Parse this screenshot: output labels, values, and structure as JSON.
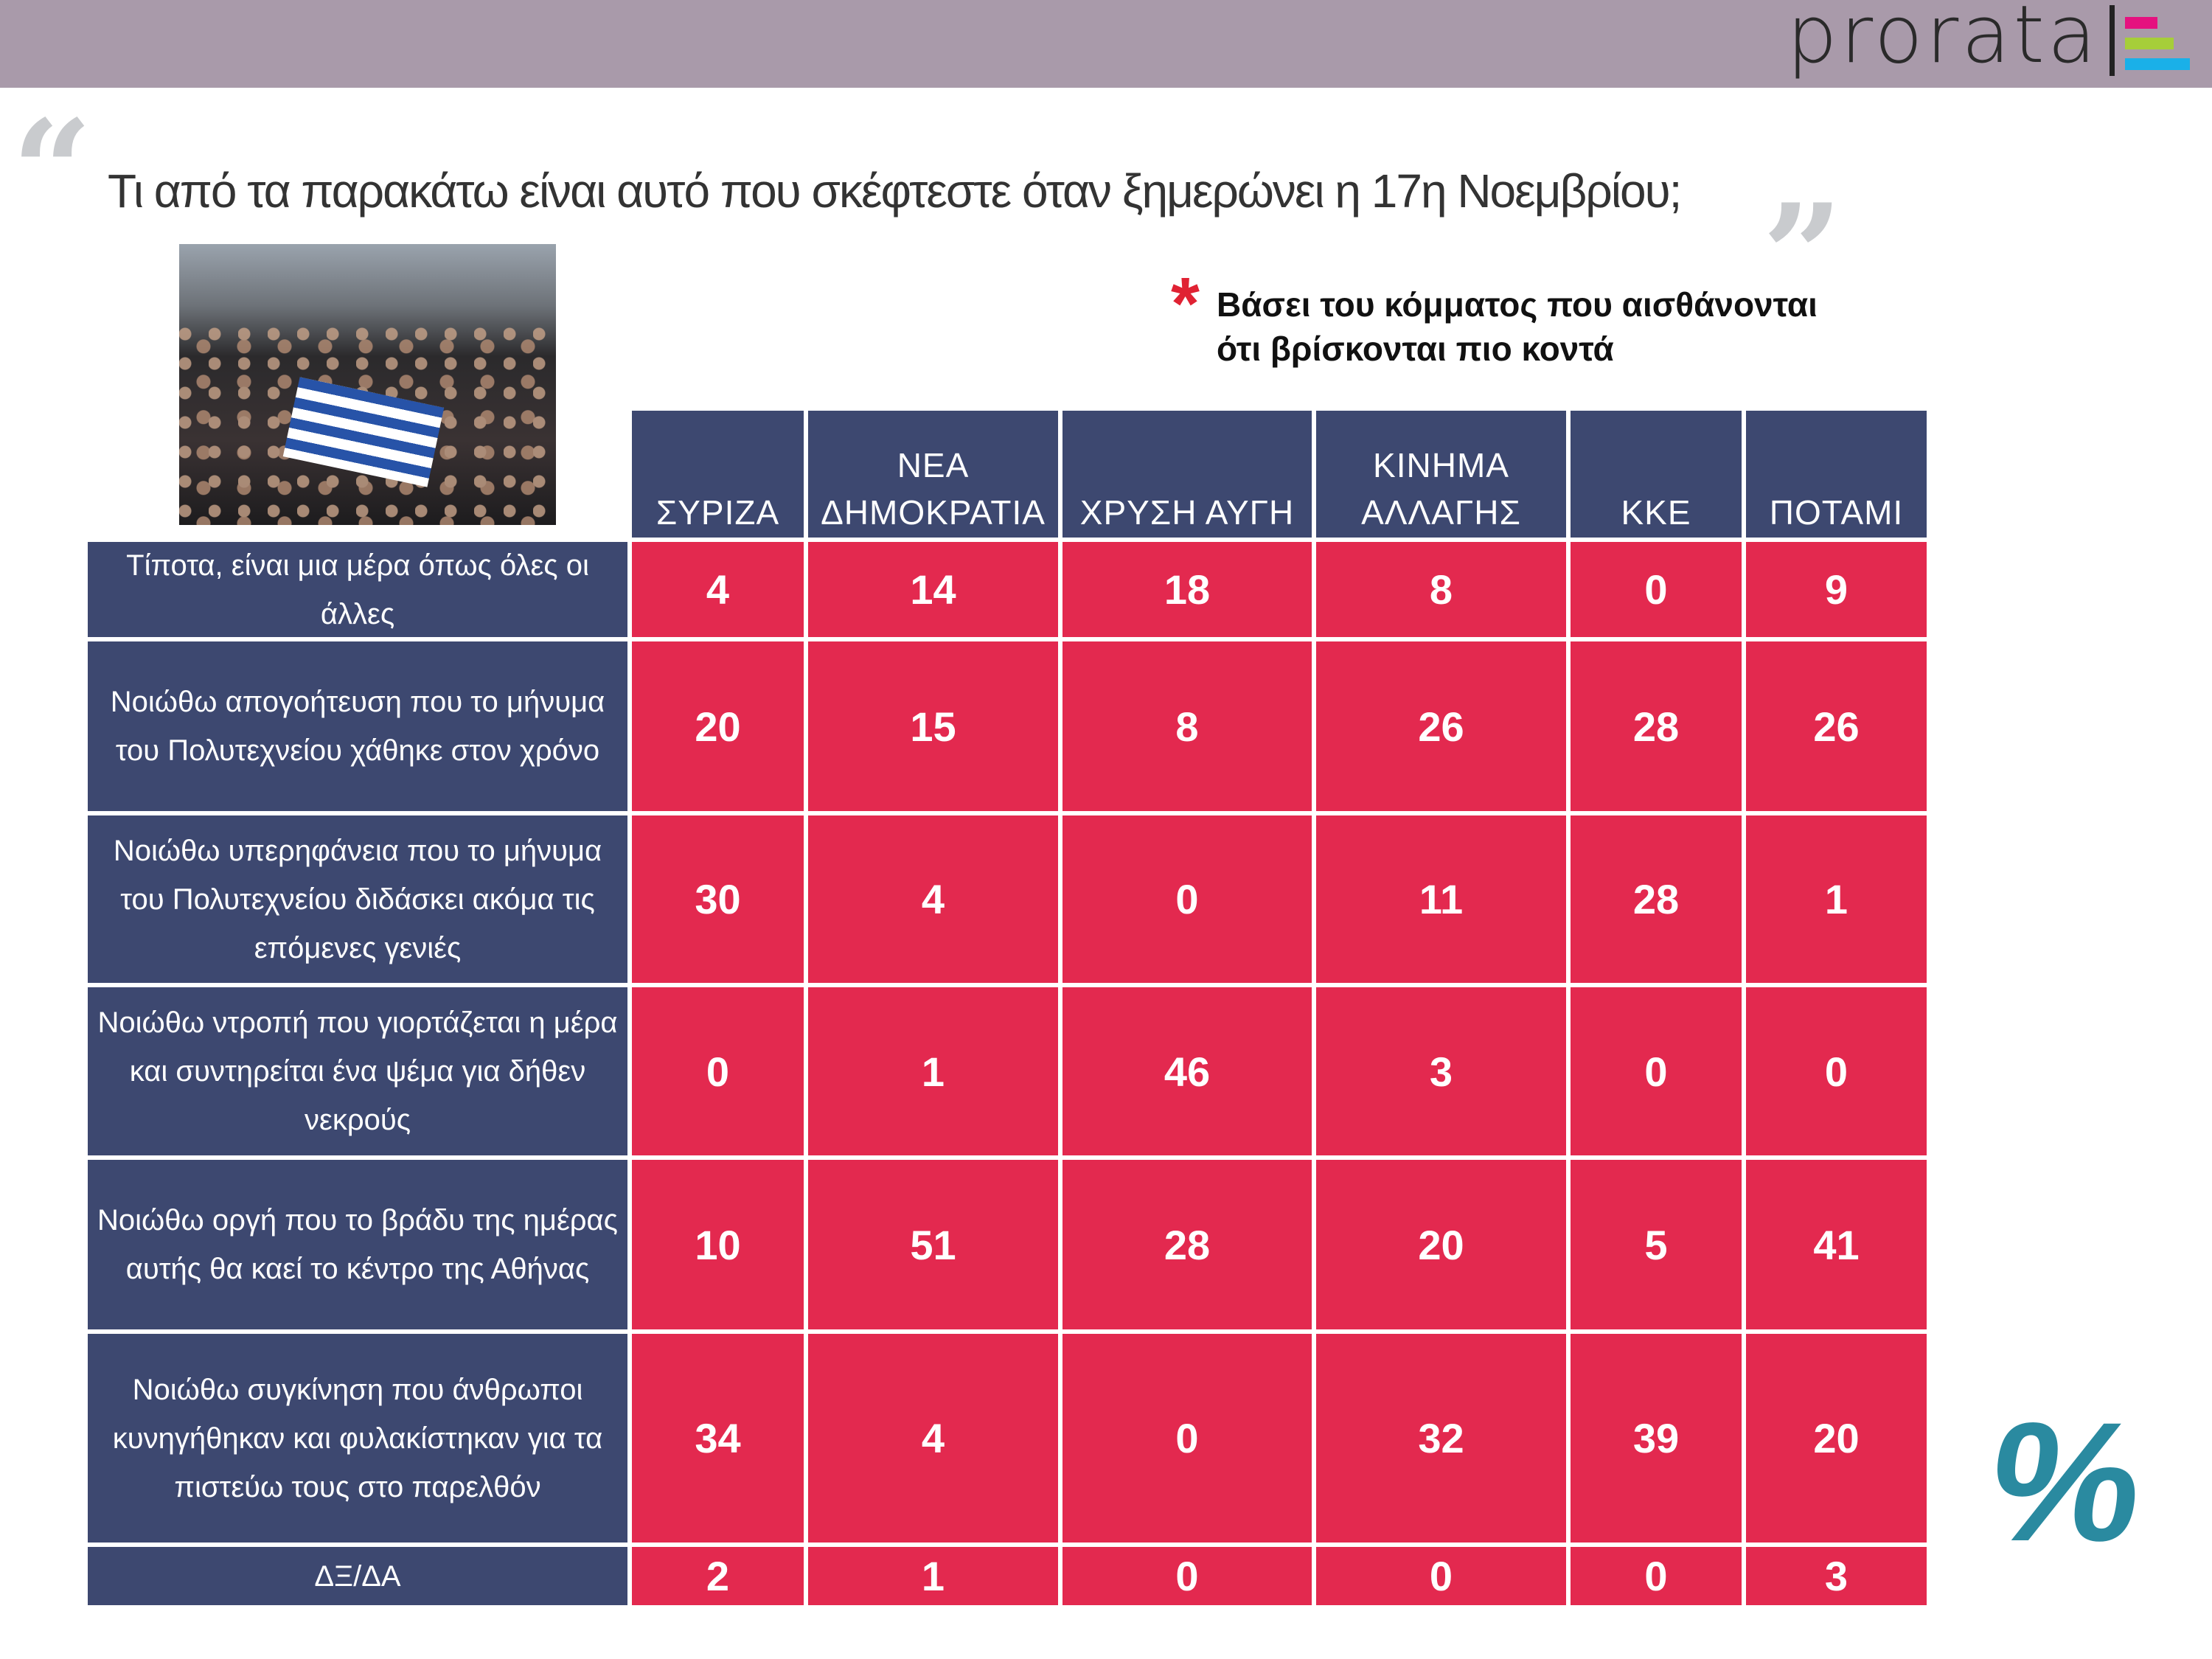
{
  "header": {
    "logo_text": "prorata",
    "logo_colors": [
      "#e5117f",
      "#a6ce39",
      "#1ab0e8"
    ],
    "bar_color": "#a99aaa"
  },
  "question": "Τι από τα παρακάτω είναι αυτό που σκέφτεστε όταν ξημερώνει η 17η Νοεμβρίου;",
  "note": {
    "asterisk": "*",
    "line1": "Βάσει του κόμματος που αισθάνονται",
    "line2": "ότι βρίσκονται πιο κοντά"
  },
  "percent_symbol": "%",
  "colors": {
    "header": "#3d4870",
    "cell": "#e3294f",
    "percent": "#2a8aa0"
  },
  "chart_data": {
    "type": "table",
    "title": "Τι από τα παρακάτω είναι αυτό που σκέφτεστε όταν ξημερώνει η 17η Νοεμβρίου;",
    "unit": "%",
    "columns": [
      {
        "line1": "",
        "line2": "ΣΥΡΙΖΑ"
      },
      {
        "line1": "ΝΕΑ",
        "line2": "ΔΗΜΟΚΡΑΤΙΑ"
      },
      {
        "line1": "",
        "line2": "ΧΡΥΣΗ ΑΥΓΗ"
      },
      {
        "line1": "ΚΙΝΗΜΑ",
        "line2": "ΑΛΛΑΓΗΣ"
      },
      {
        "line1": "",
        "line2": "ΚΚΕ"
      },
      {
        "line1": "",
        "line2": "ΠΟΤΑΜΙ"
      }
    ],
    "rows": [
      {
        "label": "Τίποτα, είναι μια μέρα όπως όλες οι άλλες",
        "values": [
          4,
          14,
          18,
          8,
          0,
          9
        ]
      },
      {
        "label": "Νοιώθω απογοήτευση που το μήνυμα του Πολυτεχνείου χάθηκε στον χρόνο",
        "values": [
          20,
          15,
          8,
          26,
          28,
          26
        ]
      },
      {
        "label": "Νοιώθω υπερηφάνεια που το μήνυμα του Πολυτεχνείου διδάσκει ακόμα τις επόμενες γενιές",
        "values": [
          30,
          4,
          0,
          11,
          28,
          1
        ]
      },
      {
        "label": "Νοιώθω ντροπή που γιορτάζεται η μέρα και συντηρείται ένα ψέμα για δήθεν νεκρούς",
        "values": [
          0,
          1,
          46,
          3,
          0,
          0
        ]
      },
      {
        "label": "Νοιώθω οργή που το βράδυ της ημέρας αυτής θα καεί το κέντρο της Αθήνας",
        "values": [
          10,
          51,
          28,
          20,
          5,
          41
        ]
      },
      {
        "label": "Νοιώθω συγκίνηση που άνθρωποι κυνηγήθηκαν και φυλακίστηκαν για τα πιστεύω τους στο παρελθόν",
        "values": [
          34,
          4,
          0,
          32,
          39,
          20
        ]
      },
      {
        "label": "ΔΞ/ΔΑ",
        "values": [
          2,
          1,
          0,
          0,
          0,
          3
        ]
      }
    ]
  }
}
